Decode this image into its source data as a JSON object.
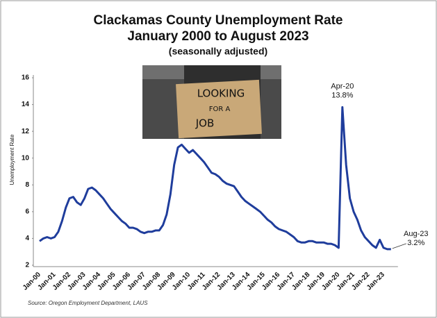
{
  "chart_data": {
    "type": "line",
    "title": "Clackamas County Unemployment Rate",
    "subtitle": "January 2000 to August 2023",
    "note": "(seasonally adjusted)",
    "y_label": "Unemployment Rate",
    "source": "Source: Oregon Employment Department, LAUS",
    "photo_sign": [
      "LOOKING",
      "FOR A",
      "JOB"
    ],
    "annotations": [
      "Apr-20",
      "13.8%",
      "Aug-23",
      "3.2%"
    ],
    "categories": [
      "Jan-00",
      null,
      null,
      null,
      "Jan-01",
      null,
      null,
      null,
      "Jan-02",
      null,
      null,
      null,
      "Jan-03",
      null,
      null,
      null,
      "Jan-04",
      null,
      null,
      null,
      "Jan-05",
      null,
      null,
      null,
      "Jan-06",
      null,
      null,
      null,
      "Jan-07",
      null,
      null,
      null,
      "Jan-08",
      null,
      null,
      null,
      "Jan-09",
      null,
      null,
      null,
      "Jan-10",
      null,
      null,
      null,
      "Jan-11",
      null,
      null,
      null,
      "Jan-12",
      null,
      null,
      null,
      "Jan-13",
      null,
      null,
      null,
      "Jan-14",
      null,
      null,
      null,
      "Jan-15",
      null,
      null,
      null,
      "Jan-16",
      null,
      null,
      null,
      "Jan-17",
      null,
      null,
      null,
      "Jan-18",
      null,
      null,
      null,
      "Jan-19",
      null,
      null,
      null,
      "Jan-20",
      null,
      null,
      null,
      "Jan-21",
      null,
      null,
      null,
      "Jan-22",
      null,
      null,
      null,
      "Jan-23",
      null,
      null
    ],
    "series": [
      {
        "color": "#1f3d9c",
        "values": [
          3.8,
          4.0,
          4.1,
          4.0,
          4.1,
          4.5,
          5.3,
          6.3,
          7.0,
          7.1,
          6.7,
          6.5,
          7.0,
          7.7,
          7.8,
          7.6,
          7.3,
          7.0,
          6.6,
          6.2,
          5.9,
          5.6,
          5.3,
          5.1,
          4.8,
          4.8,
          4.7,
          4.5,
          4.4,
          4.5,
          4.5,
          4.6,
          4.6,
          5.0,
          5.8,
          7.3,
          9.5,
          10.8,
          11.0,
          10.7,
          10.4,
          10.6,
          10.3,
          10.0,
          9.7,
          9.3,
          8.9,
          8.8,
          8.6,
          8.3,
          8.1,
          8.0,
          7.9,
          7.5,
          7.1,
          6.8,
          6.6,
          6.4,
          6.2,
          6.0,
          5.7,
          5.4,
          5.2,
          4.9,
          4.7,
          4.6,
          4.5,
          4.3,
          4.1,
          3.8,
          3.7,
          3.7,
          3.8,
          3.8,
          3.7,
          3.7,
          3.7,
          3.6,
          3.6,
          3.5,
          3.3,
          13.8,
          9.5,
          7.0,
          6.0,
          5.4,
          4.6,
          4.1,
          3.8,
          3.5,
          3.3,
          3.9,
          3.3,
          3.2,
          3.2
        ]
      }
    ],
    "ylim": [
      2,
      16
    ],
    "yticks": [
      2,
      4,
      6,
      8,
      10,
      12,
      14,
      16
    ],
    "grid": false
  }
}
